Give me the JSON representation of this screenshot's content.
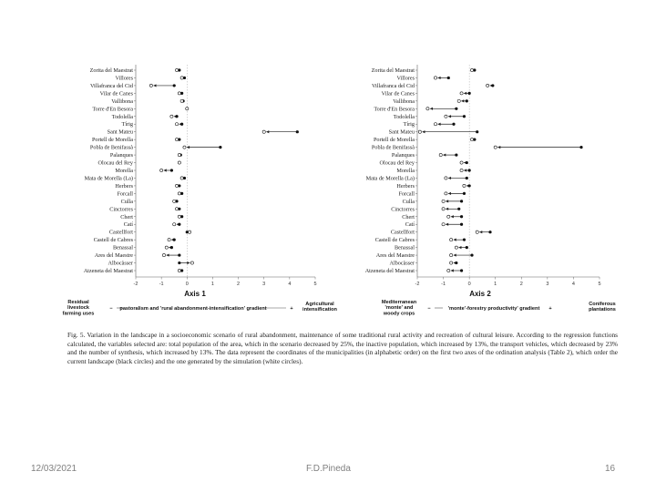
{
  "figure": {
    "municipalities_axis1": [
      "Zorita del Maestrat",
      "Villores",
      "Villafranca del Cid",
      "Vilar de Canes",
      "Vallibona",
      "Torre d'En Besora",
      "Todolella",
      "Tírig",
      "Sant Mateu",
      "Portell de Morella",
      "Pobla de Benifassà",
      "Palanques",
      "Olocau del Rey",
      "Morella",
      "Mata de Morella (La)",
      "Herbers",
      "Forcall",
      "Culla",
      "Cinctorres",
      "Chert",
      "Catí",
      "Castellfort",
      "Castell de Cabres",
      "Benassal",
      "Ares del Maestre",
      "Albocàsser",
      "Atzeneta del Maestrat"
    ],
    "municipalities_axis2": [
      "Zorita del Maestrat",
      "Villores",
      "Villafranca del Cid",
      "Vilar de Canes",
      "Vallibona",
      "Torre d'En Besora",
      "Todolella",
      "Tírig",
      "Sant Mateu",
      "Portell de Morella",
      "Pobla de Benifassà",
      "Palanques",
      "Olocau del Rey",
      "Morella",
      "Mata de Morella (La)",
      "Herbers",
      "Forcall",
      "Culla",
      "Cinctorres",
      "Chert",
      "Catí",
      "Castellfort",
      "Castell de Cabres",
      "Benassal",
      "Ares del Maestre",
      "Albocàsser",
      "Atzeneta del Maestrat"
    ],
    "axis1": {
      "title": "Axis 1",
      "ticks": [
        "-2",
        "-1",
        "0",
        "1",
        "2",
        "3",
        "4",
        "5"
      ],
      "range": [
        -2,
        5
      ],
      "current": [
        -0.3,
        -0.1,
        -0.5,
        -0.2,
        -0.15,
        0.0,
        -0.4,
        -0.2,
        4.3,
        -0.3,
        1.3,
        -0.25,
        -0.3,
        -0.6,
        -0.1,
        -0.3,
        -0.2,
        -0.4,
        -0.3,
        -0.2,
        -0.3,
        0.0,
        -0.5,
        -0.6,
        -0.3,
        -0.3,
        -0.2
      ],
      "scenario": [
        -0.4,
        -0.2,
        -1.4,
        -0.3,
        -0.2,
        0.0,
        -0.6,
        -0.4,
        3.0,
        -0.4,
        -0.1,
        -0.3,
        -0.3,
        -1.0,
        -0.2,
        -0.4,
        -0.3,
        -0.5,
        -0.4,
        -0.3,
        -0.5,
        0.1,
        -0.7,
        -0.8,
        -0.9,
        0.2,
        -0.3
      ],
      "left_label": "Residual livestock farming uses",
      "gradient_label": "pastoralism and 'rural abandonment-intensification' gradient",
      "sign_minus": "−",
      "sign_plus": "+",
      "right_label": "Agricultural intensification"
    },
    "axis2": {
      "title": "Axis 2",
      "ticks": [
        "-2",
        "-1",
        "0",
        "1",
        "2",
        "3",
        "4",
        "5"
      ],
      "range": [
        -2,
        5
      ],
      "current": [
        0.2,
        -0.8,
        0.9,
        0.0,
        -0.1,
        -0.5,
        -0.2,
        -0.6,
        0.3,
        0.2,
        4.3,
        -0.5,
        -0.1,
        0.0,
        -0.1,
        0.0,
        -0.2,
        -0.3,
        -0.4,
        -0.3,
        -0.3,
        0.8,
        -0.2,
        -0.1,
        0.1,
        -0.5,
        -0.3
      ],
      "scenario": [
        0.1,
        -1.3,
        0.7,
        -0.3,
        -0.4,
        -1.6,
        -0.9,
        -1.3,
        -1.9,
        0.1,
        1.0,
        -1.1,
        -0.3,
        -0.3,
        -0.9,
        -0.2,
        -0.9,
        -1.0,
        -1.0,
        -0.8,
        -1.0,
        0.3,
        -0.7,
        -0.5,
        -0.7,
        -0.7,
        -0.8
      ],
      "left_label": "Mediterranean 'monte' and woody crops",
      "gradient_label": "'monte'-forestry productivity' gradient",
      "sign_minus": "−",
      "sign_plus": "+",
      "right_label": "Coniferous plantations"
    },
    "caption": "Fig. 5. Variation in the landscape in a socioeconomic scenario of rural abandonment, maintenance of some traditional rural activity and recreation of cultural leisure. According to the regression functions calculated, the variables selected are: total population of the area, which in the scenario decreased by 25%, the inactive population, which increased by 13%, the transport vehicles, which decreased by 23% and the number of synthesis, which increased by 13%. The data represent the coordinates of the municipalities (in alphabetic order) on the first two axes of the ordination analysis (Table 2), which order the current landscape (black circles) and the one generated by the simulation (white circles)."
  },
  "footer": {
    "date": "12/03/2021",
    "author": "F.D.Pineda",
    "page": "16"
  }
}
